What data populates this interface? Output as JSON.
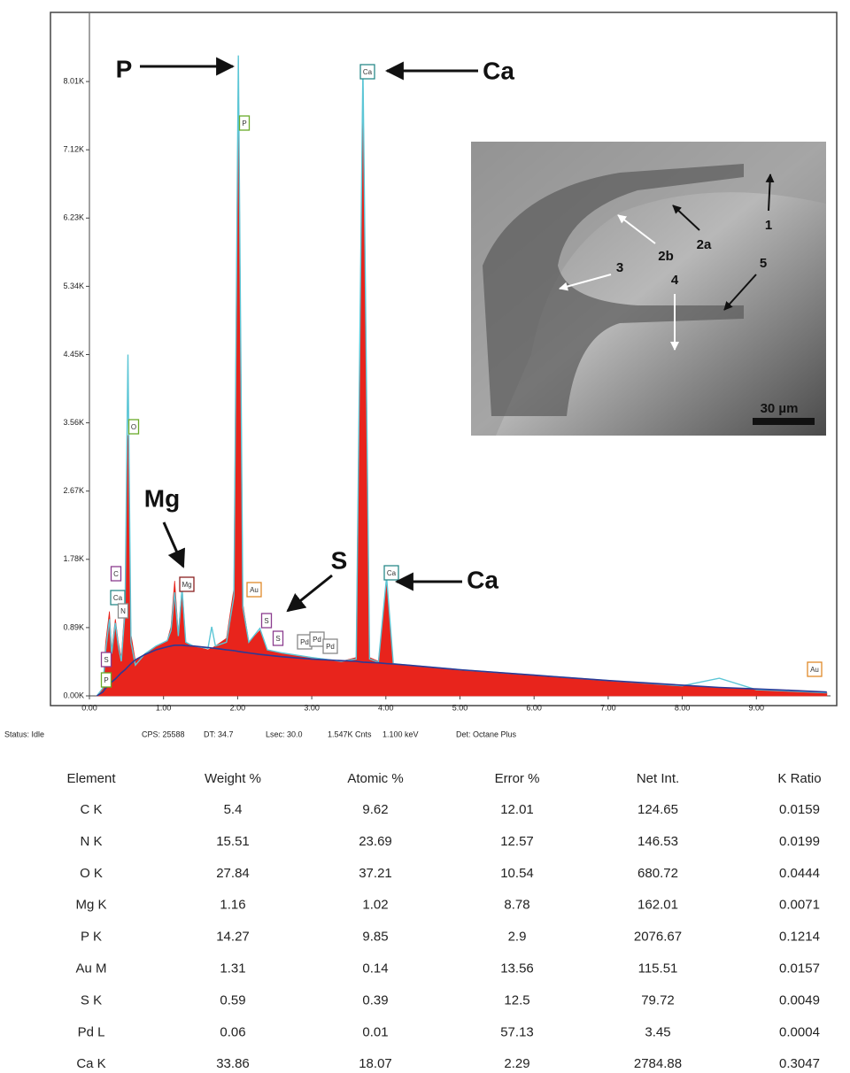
{
  "chart_data": {
    "type": "area",
    "x": [
      0.1,
      0.18,
      0.22,
      0.27,
      0.3,
      0.35,
      0.39,
      0.43,
      0.48,
      0.52,
      0.56,
      0.62,
      0.75,
      0.9,
      1.05,
      1.1,
      1.15,
      1.2,
      1.25,
      1.3,
      1.4,
      1.6,
      1.65,
      1.7,
      1.85,
      1.95,
      2.01,
      2.07,
      2.15,
      2.3,
      2.4,
      2.6,
      3.0,
      3.4,
      3.6,
      3.69,
      3.78,
      3.9,
      4.01,
      4.1,
      4.3,
      5,
      6,
      7,
      8,
      8.5,
      9,
      9.5,
      9.95
    ],
    "series": [
      {
        "color": "#e8241c",
        "values": [
          0,
          100,
          700,
          1100,
          600,
          1000,
          700,
          500,
          1200,
          3400,
          800,
          450,
          550,
          650,
          720,
          900,
          1500,
          800,
          1430,
          700,
          650,
          600,
          620,
          650,
          750,
          1400,
          8300,
          1200,
          700,
          850,
          600,
          560,
          500,
          450,
          500,
          8150,
          500,
          450,
          1500,
          420,
          400,
          340,
          270,
          200,
          130,
          100,
          80,
          60,
          40
        ]
      },
      {
        "color": "#5cc6d6",
        "values": [
          0,
          100,
          600,
          1000,
          550,
          950,
          650,
          450,
          1100,
          4450,
          700,
          400,
          550,
          650,
          720,
          850,
          1350,
          780,
          1400,
          700,
          650,
          620,
          900,
          650,
          700,
          1300,
          8350,
          1150,
          700,
          880,
          600,
          560,
          500,
          450,
          480,
          8200,
          480,
          440,
          1550,
          420,
          400,
          340,
          270,
          200,
          130,
          230,
          80,
          60,
          40
        ]
      },
      {
        "color": "#2c3a96",
        "values": [
          0,
          50,
          100,
          150,
          180,
          220,
          260,
          300,
          340,
          380,
          420,
          470,
          540,
          600,
          640,
          650,
          660,
          660,
          660,
          655,
          650,
          630,
          625,
          620,
          600,
          590,
          580,
          570,
          560,
          540,
          530,
          510,
          480,
          460,
          450,
          440,
          435,
          430,
          420,
          415,
          400,
          340,
          270,
          200,
          140,
          110,
          90,
          70,
          50
        ]
      }
    ],
    "xlim": [
      0,
      10
    ],
    "xticks": [
      {
        "value": 0,
        "label": "0.00"
      },
      {
        "value": 1,
        "label": "1.00"
      },
      {
        "value": 2,
        "label": "2.00"
      },
      {
        "value": 3,
        "label": "3.00"
      },
      {
        "value": 4,
        "label": "4.00"
      },
      {
        "value": 5,
        "label": "5.00"
      },
      {
        "value": 6,
        "label": "6.00"
      },
      {
        "value": 7,
        "label": "7.00"
      },
      {
        "value": 8,
        "label": "8.00"
      },
      {
        "value": 9,
        "label": "9.00"
      }
    ],
    "ylim": [
      0,
      8900
    ],
    "yticks": [
      {
        "value": 0,
        "label": "0.00K"
      },
      {
        "value": 890,
        "label": "0.89K"
      },
      {
        "value": 1780,
        "label": "1.78K"
      },
      {
        "value": 2670,
        "label": "2.67K"
      },
      {
        "value": 3560,
        "label": "3.56K"
      },
      {
        "value": 4450,
        "label": "4.45K"
      },
      {
        "value": 5340,
        "label": "5.34K"
      },
      {
        "value": 6230,
        "label": "6.23K"
      },
      {
        "value": 7120,
        "label": "7.12K"
      },
      {
        "value": 8010,
        "label": "8.01K"
      }
    ],
    "peak_labels": [
      {
        "text": "C",
        "color": "#8b3d8f"
      },
      {
        "text": "Ca",
        "color": "#2a8a8a"
      },
      {
        "text": "N",
        "color": "#888888"
      },
      {
        "text": "S",
        "color": "#8b3d8f"
      },
      {
        "text": "P",
        "color": "#6aaa2a"
      },
      {
        "text": "O",
        "color": "#6aaa2a"
      },
      {
        "text": "Mg",
        "color": "#8a2020"
      },
      {
        "text": "P",
        "color": "#6aaa2a"
      },
      {
        "text": "Au",
        "color": "#e08a2a"
      },
      {
        "text": "S",
        "color": "#8b3d8f"
      },
      {
        "text": "S",
        "color": "#8b3d8f"
      },
      {
        "text": "Pd",
        "color": "#888888"
      },
      {
        "text": "Pd",
        "color": "#888888"
      },
      {
        "text": "Pd",
        "color": "#888888"
      },
      {
        "text": "Ca",
        "color": "#2a8a8a"
      },
      {
        "text": "Ca",
        "color": "#2a8a8a"
      },
      {
        "text": "Au",
        "color": "#e08a2a"
      }
    ],
    "annotations": [
      "P",
      "Ca",
      "Mg",
      "S",
      "Ca"
    ],
    "status": [
      "Status: Idle",
      "CPS: 25588",
      "DT: 34.7",
      "Lsec: 30.0",
      "1.547K Cnts",
      "1.100 keV",
      "Det: Octane Plus"
    ]
  },
  "inset": {
    "labels": [
      "1",
      "2a",
      "2b",
      "3",
      "4",
      "5"
    ],
    "scale_bar": "30 µm"
  },
  "table": {
    "header": [
      "Element",
      "Weight %",
      "Atomic %",
      "Error %",
      "Net Int.",
      "K Ratio"
    ],
    "rows": [
      [
        "C K",
        5.4,
        9.62,
        12.01,
        124.65,
        0.0159
      ],
      [
        "N K",
        15.51,
        23.69,
        12.57,
        146.53,
        0.0199
      ],
      [
        "O K",
        27.84,
        37.21,
        10.54,
        680.72,
        0.0444
      ],
      [
        "Mg K",
        1.16,
        1.02,
        8.78,
        162.01,
        0.0071
      ],
      [
        "P K",
        14.27,
        9.85,
        2.9,
        2076.67,
        0.1214
      ],
      [
        "Au M",
        1.31,
        0.14,
        13.56,
        115.51,
        0.0157
      ],
      [
        "S K",
        0.59,
        0.39,
        12.5,
        79.72,
        0.0049
      ],
      [
        "Pd L",
        0.06,
        0.01,
        57.13,
        3.45,
        0.0004
      ],
      [
        "Ca K",
        33.86,
        18.07,
        2.29,
        2784.88,
        0.3047
      ]
    ]
  }
}
